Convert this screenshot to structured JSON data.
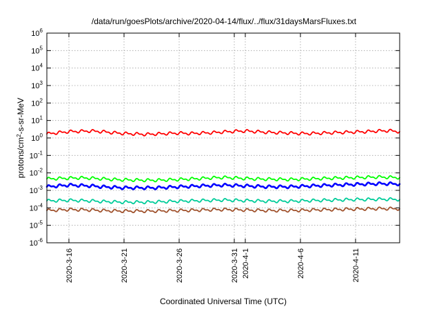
{
  "chart_data": {
    "type": "line",
    "title": "/data/run/goesPlots/archive/2020-04-14/flux/../flux/31daysMarsFluxes.txt",
    "xlabel": "Coordinated Universal Time (UTC)",
    "ylabel_main": "protons/cm",
    "ylabel_sup": "2",
    "ylabel_rest": "-s-sr-MeV",
    "y_scale": "log",
    "ylim": [
      1e-06,
      1000000.0
    ],
    "yticks": [
      {
        "base": "10",
        "exp": "-6",
        "value": 1e-06
      },
      {
        "base": "10",
        "exp": "-5",
        "value": 1e-05
      },
      {
        "base": "10",
        "exp": "-4",
        "value": 0.0001
      },
      {
        "base": "10",
        "exp": "-3",
        "value": 0.001
      },
      {
        "base": "10",
        "exp": "-2",
        "value": 0.01
      },
      {
        "base": "10",
        "exp": "-1",
        "value": 0.1
      },
      {
        "base": "10",
        "exp": "0",
        "value": 1
      },
      {
        "base": "10",
        "exp": "1",
        "value": 10
      },
      {
        "base": "10",
        "exp": "2",
        "value": 100
      },
      {
        "base": "10",
        "exp": "3",
        "value": 1000
      },
      {
        "base": "10",
        "exp": "4",
        "value": 10000
      },
      {
        "base": "10",
        "exp": "5",
        "value": 100000
      },
      {
        "base": "10",
        "exp": "6",
        "value": 1000000
      }
    ],
    "xlim": [
      "2020-03-14",
      "2020-04-15"
    ],
    "xticks": [
      {
        "label": "2020-3-16",
        "date": "2020-03-16"
      },
      {
        "label": "2020-3-21",
        "date": "2020-03-21"
      },
      {
        "label": "2020-3-26",
        "date": "2020-03-26"
      },
      {
        "label": "2020-3-31",
        "date": "2020-03-31"
      },
      {
        "label": "2020-4-1",
        "date": "2020-04-01"
      },
      {
        "label": "2020-4-6",
        "date": "2020-04-06"
      },
      {
        "label": "2020-4-11",
        "date": "2020-04-11"
      }
    ],
    "grid": true,
    "series": [
      {
        "color": "#ff0000",
        "start": "2020-03-14",
        "end": "2020-04-15",
        "values": [
          1.7,
          2.0,
          2.3,
          2.4,
          2.5,
          2.3,
          2.0,
          1.8,
          1.7,
          1.6,
          1.7,
          1.8,
          1.9,
          1.8,
          1.9,
          2.0,
          2.2,
          2.4,
          2.5,
          2.3,
          2.1,
          2.0,
          1.9,
          1.8,
          1.8,
          1.9,
          2.0,
          2.1,
          2.2,
          2.3,
          2.5,
          2.6,
          2.3
        ]
      },
      {
        "color": "#00ff00",
        "start": "2020-03-14",
        "end": "2020-04-15",
        "values": [
          0.0045,
          0.0048,
          0.005,
          0.0052,
          0.005,
          0.0046,
          0.0042,
          0.004,
          0.0039,
          0.0038,
          0.0038,
          0.004,
          0.0042,
          0.0045,
          0.0048,
          0.0052,
          0.0055,
          0.0052,
          0.0048,
          0.0045,
          0.0044,
          0.0043,
          0.0042,
          0.0044,
          0.0046,
          0.0048,
          0.005,
          0.0052,
          0.0054,
          0.0056,
          0.0058,
          0.0056,
          0.0054
        ]
      },
      {
        "color": "#0000ff",
        "start": "2020-03-14",
        "end": "2020-04-15",
        "values": [
          0.0016,
          0.0018,
          0.002,
          0.0019,
          0.0018,
          0.0016,
          0.0015,
          0.0014,
          0.0014,
          0.0014,
          0.0014,
          0.0015,
          0.0016,
          0.0017,
          0.0018,
          0.0019,
          0.002,
          0.0019,
          0.0018,
          0.0017,
          0.0016,
          0.0016,
          0.0016,
          0.0017,
          0.0018,
          0.0019,
          0.002,
          0.0021,
          0.0022,
          0.0023,
          0.0024,
          0.0024,
          0.0023
        ]
      },
      {
        "color": "#00cc99",
        "start": "2020-03-14",
        "end": "2020-04-15",
        "values": [
          0.00025,
          0.00026,
          0.00027,
          0.00026,
          0.00025,
          0.00023,
          0.00022,
          0.00021,
          0.00021,
          0.00021,
          0.00022,
          0.00023,
          0.00024,
          0.00025,
          0.00026,
          0.00027,
          0.00028,
          0.00027,
          0.00026,
          0.00025,
          0.00024,
          0.00024,
          0.00024,
          0.00025,
          0.00026,
          0.00027,
          0.00028,
          0.00029,
          0.0003,
          0.0003,
          0.00031,
          0.00031,
          0.0003
        ]
      },
      {
        "color": "#a0522d",
        "start": "2020-03-14",
        "end": "2020-04-15",
        "values": [
          7e-05,
          7.5e-05,
          8e-05,
          7.8e-05,
          7.5e-05,
          7e-05,
          6.7e-05,
          6.5e-05,
          6.5e-05,
          6.5e-05,
          6.6e-05,
          6.8e-05,
          7e-05,
          7.2e-05,
          7.5e-05,
          7.8e-05,
          8e-05,
          7.8e-05,
          7.5e-05,
          7.2e-05,
          7e-05,
          7e-05,
          7e-05,
          7.2e-05,
          7.5e-05,
          7.8e-05,
          8e-05,
          8.2e-05,
          8.5e-05,
          8.7e-05,
          9e-05,
          9e-05,
          8.8e-05
        ]
      }
    ]
  }
}
